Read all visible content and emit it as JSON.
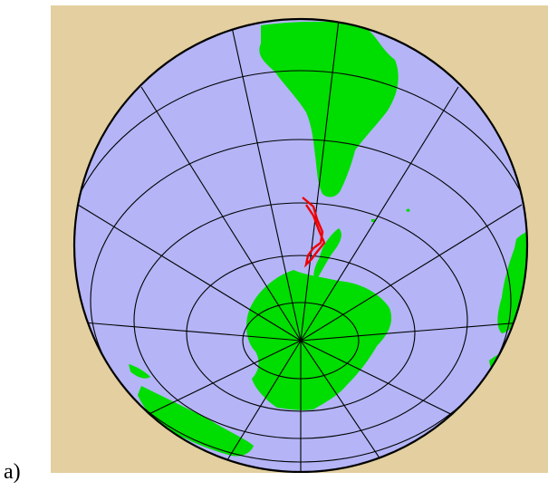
{
  "panel_label": "a)",
  "map": {
    "projection": "orthographic",
    "center": "south-pole",
    "colors": {
      "background": "#e3cf9f",
      "ocean": "#b4b4f7",
      "land": "#00dd00",
      "graticule": "#000000",
      "route": "#ee0000"
    },
    "features": [
      "south-america",
      "antarctica",
      "antarctic-peninsula",
      "australia-coast",
      "africa-coast",
      "route-drake-passage"
    ]
  }
}
